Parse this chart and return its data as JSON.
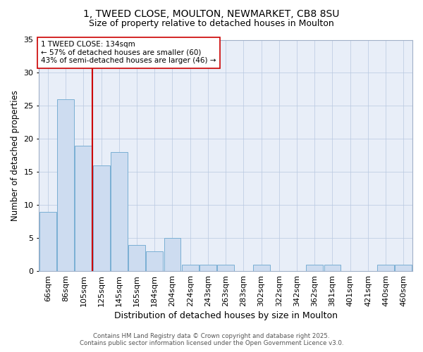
{
  "title_line1": "1, TWEED CLOSE, MOULTON, NEWMARKET, CB8 8SU",
  "title_line2": "Size of property relative to detached houses in Moulton",
  "categories": [
    "66sqm",
    "86sqm",
    "105sqm",
    "125sqm",
    "145sqm",
    "165sqm",
    "184sqm",
    "204sqm",
    "224sqm",
    "243sqm",
    "263sqm",
    "283sqm",
    "302sqm",
    "322sqm",
    "342sqm",
    "362sqm",
    "381sqm",
    "401sqm",
    "421sqm",
    "440sqm",
    "460sqm"
  ],
  "values": [
    9,
    26,
    19,
    16,
    18,
    4,
    3,
    5,
    1,
    1,
    1,
    0,
    1,
    0,
    0,
    1,
    1,
    0,
    0,
    1,
    1
  ],
  "bar_color": "#cddcf0",
  "bar_edge_color": "#7aafd4",
  "red_line_x": 2.5,
  "red_line_label": "1 TWEED CLOSE: 134sqm",
  "annotation_line2": "← 57% of detached houses are smaller (60)",
  "annotation_line3": "43% of semi-detached houses are larger (46) →",
  "xlabel": "Distribution of detached houses by size in Moulton",
  "ylabel": "Number of detached properties",
  "ylim": [
    0,
    35
  ],
  "yticks": [
    0,
    5,
    10,
    15,
    20,
    25,
    30,
    35
  ],
  "background_color": "#e8eef8",
  "footer_line1": "Contains HM Land Registry data © Crown copyright and database right 2025.",
  "footer_line2": "Contains public sector information licensed under the Open Government Licence v3.0."
}
